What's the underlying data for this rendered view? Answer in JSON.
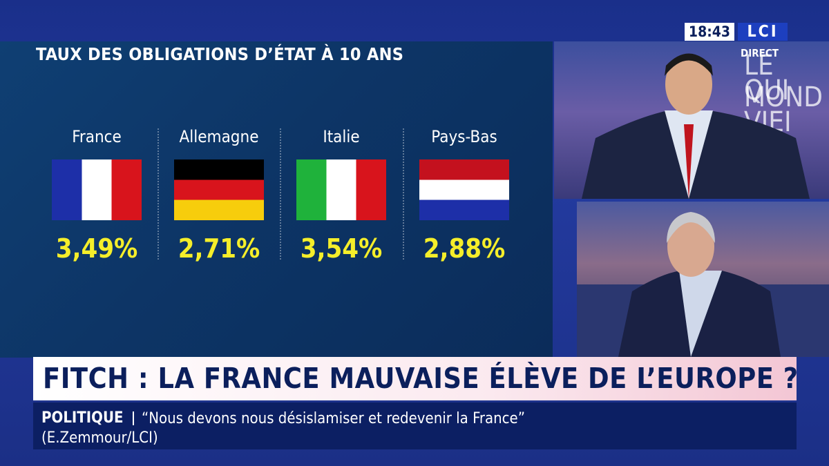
{
  "header": {
    "clock": "18:43",
    "logo": "LCI",
    "live": "DIRECT",
    "show_line1": "LE MOND",
    "show_line2": "QUI VIEI"
  },
  "graphic": {
    "title": "TAUX DES OBLIGATIONS D’ÉTAT À 10 ANS",
    "countries": [
      {
        "name": "France",
        "rate": "3,49%"
      },
      {
        "name": "Allemagne",
        "rate": "2,71%"
      },
      {
        "name": "Italie",
        "rate": "3,54%"
      },
      {
        "name": "Pays-Bas",
        "rate": "2,88%"
      }
    ]
  },
  "headline": "FITCH : LA FRANCE MAUVAISE ÉLÈVE DE L’EUROPE ?",
  "ticker": {
    "category": "POLITIQUE",
    "text": "“Nous devons nous désislamiser et redevenir la France” (E.Zemmour/LCI)"
  }
}
